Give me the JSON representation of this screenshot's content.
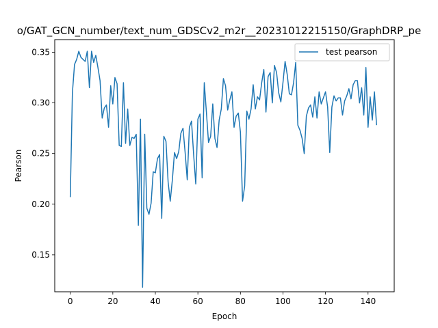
{
  "chart_data": {
    "type": "line",
    "title": "o/GAT_GCN_number/text_num_GDSCv2_m2r__20231012215150/GraphDRP_pe",
    "xlabel": "Epoch",
    "ylabel": "Pearson",
    "xlim": [
      -7.3,
      152.3
    ],
    "ylim": [
      0.1135,
      0.3625
    ],
    "xticks": [
      0,
      20,
      40,
      60,
      80,
      100,
      120,
      140
    ],
    "yticks": [
      0.15,
      0.2,
      0.25,
      0.3,
      0.35
    ],
    "ytick_labels": [
      "0.15",
      "0.20",
      "0.25",
      "0.30",
      "0.35"
    ],
    "grid": false,
    "legend_position": "top-right",
    "series": [
      {
        "name": "test pearson",
        "color": "#1f77b4",
        "values": [
          0.207,
          0.31,
          0.338,
          0.343,
          0.351,
          0.345,
          0.343,
          0.341,
          0.351,
          0.315,
          0.351,
          0.34,
          0.347,
          0.335,
          0.322,
          0.285,
          0.295,
          0.298,
          0.276,
          0.317,
          0.299,
          0.325,
          0.319,
          0.258,
          0.257,
          0.32,
          0.26,
          0.294,
          0.258,
          0.266,
          0.265,
          0.269,
          0.179,
          0.284,
          0.118,
          0.269,
          0.196,
          0.19,
          0.201,
          0.232,
          0.231,
          0.245,
          0.249,
          0.186,
          0.267,
          0.262,
          0.222,
          0.203,
          0.224,
          0.251,
          0.245,
          0.252,
          0.27,
          0.275,
          0.251,
          0.224,
          0.276,
          0.282,
          0.249,
          0.22,
          0.284,
          0.289,
          0.226,
          0.32,
          0.291,
          0.261,
          0.267,
          0.299,
          0.265,
          0.256,
          0.283,
          0.294,
          0.324,
          0.317,
          0.293,
          0.303,
          0.311,
          0.276,
          0.287,
          0.29,
          0.271,
          0.203,
          0.218,
          0.292,
          0.284,
          0.294,
          0.318,
          0.294,
          0.306,
          0.303,
          0.32,
          0.333,
          0.291,
          0.326,
          0.33,
          0.3,
          0.337,
          0.33,
          0.31,
          0.301,
          0.32,
          0.341,
          0.328,
          0.309,
          0.308,
          0.32,
          0.34,
          0.278,
          0.273,
          0.265,
          0.25,
          0.287,
          0.295,
          0.298,
          0.286,
          0.306,
          0.285,
          0.311,
          0.299,
          0.305,
          0.311,
          0.296,
          0.251,
          0.296,
          0.307,
          0.302,
          0.305,
          0.305,
          0.288,
          0.302,
          0.307,
          0.314,
          0.304,
          0.318,
          0.322,
          0.322,
          0.3,
          0.315,
          0.288,
          0.335,
          0.276,
          0.306,
          0.283,
          0.311,
          0.278
        ]
      }
    ]
  }
}
